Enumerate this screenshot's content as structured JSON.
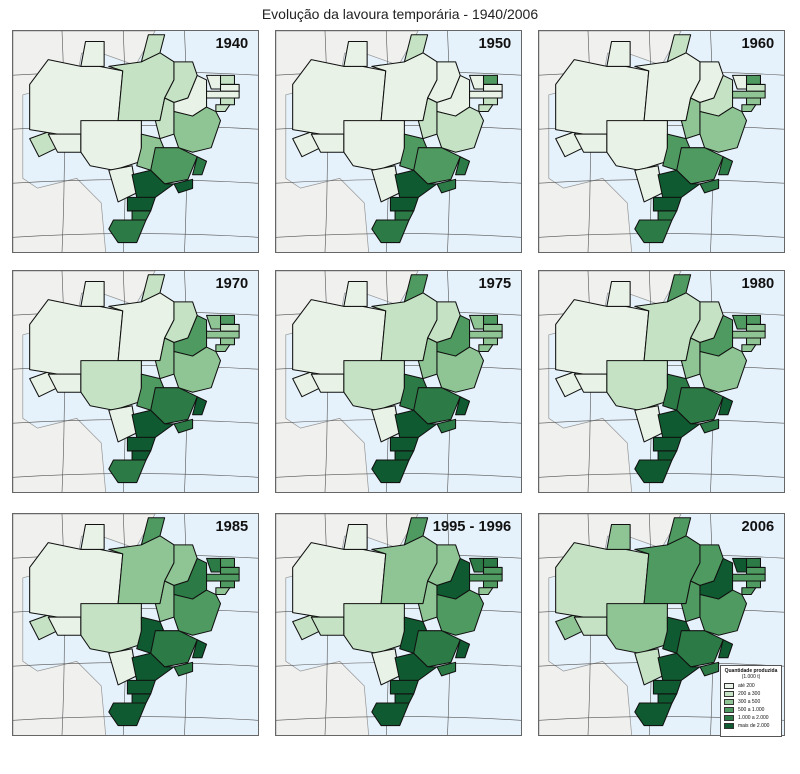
{
  "title": "Evolução da lavoura temporária - 1940/2006",
  "colors": {
    "ocean": "#e6f2fb",
    "land_foreign": "#f0f0ef",
    "class": [
      "#e8f2e6",
      "#c5e2c4",
      "#8fc594",
      "#4f9a60",
      "#2c7a45",
      "#0f5a30"
    ]
  },
  "panels": [
    {
      "label": "1940",
      "classes": [
        1,
        0,
        0,
        1,
        1,
        1,
        0,
        0,
        1,
        0,
        2,
        0,
        0,
        1,
        0,
        0,
        1,
        1,
        2,
        3,
        3,
        4,
        5,
        5,
        5,
        4,
        4
      ]
    },
    {
      "label": "1950",
      "classes": [
        0,
        0,
        0,
        0,
        1,
        0,
        0,
        0,
        1,
        0,
        3,
        0,
        0,
        3,
        0,
        0,
        1,
        1,
        1,
        2,
        3,
        4,
        4,
        5,
        5,
        4,
        4
      ]
    },
    {
      "label": "1960",
      "classes": [
        0,
        0,
        0,
        0,
        1,
        0,
        0,
        0,
        2,
        0,
        3,
        1,
        0,
        3,
        1,
        2,
        2,
        2,
        2,
        3,
        3,
        4,
        4,
        5,
        5,
        4,
        4
      ]
    },
    {
      "label": "1970",
      "classes": [
        0,
        0,
        0,
        0,
        1,
        1,
        0,
        1,
        2,
        0,
        3,
        3,
        2,
        3,
        1,
        2,
        2,
        2,
        2,
        3,
        4,
        5,
        4,
        5,
        5,
        5,
        4
      ]
    },
    {
      "label": "1975",
      "classes": [
        0,
        0,
        0,
        1,
        3,
        1,
        0,
        1,
        2,
        0,
        4,
        3,
        2,
        3,
        2,
        2,
        2,
        2,
        2,
        3,
        4,
        5,
        4,
        5,
        5,
        5,
        5
      ]
    },
    {
      "label": "1980",
      "classes": [
        0,
        0,
        0,
        1,
        3,
        1,
        0,
        1,
        2,
        0,
        4,
        3,
        3,
        3,
        2,
        2,
        2,
        2,
        2,
        3,
        4,
        5,
        4,
        5,
        5,
        5,
        5
      ]
    },
    {
      "label": "1985",
      "classes": [
        1,
        0,
        0,
        2,
        3,
        2,
        0,
        1,
        2,
        0,
        5,
        4,
        4,
        3,
        3,
        3,
        3,
        2,
        3,
        4,
        4,
        5,
        4,
        5,
        5,
        5,
        5
      ]
    },
    {
      "label": "1995 - 1996",
      "classes": [
        1,
        0,
        0,
        2,
        3,
        2,
        1,
        1,
        2,
        0,
        5,
        5,
        4,
        4,
        3,
        3,
        3,
        2,
        3,
        4,
        4,
        5,
        4,
        5,
        5,
        5,
        5
      ]
    },
    {
      "label": "2006",
      "classes": [
        2,
        1,
        2,
        3,
        3,
        3,
        1,
        2,
        3,
        1,
        5,
        5,
        5,
        4,
        3,
        3,
        3,
        3,
        3,
        4,
        4,
        5,
        4,
        5,
        5,
        5,
        5
      ]
    }
  ],
  "legend": {
    "title": "Quantidade produzida",
    "unit": "(1.000 t)",
    "items": [
      "até 200",
      "200 a 300",
      "300 a 500",
      "500 a 1.000",
      "1.000 a 2.000",
      "mais de 2.000"
    ]
  }
}
